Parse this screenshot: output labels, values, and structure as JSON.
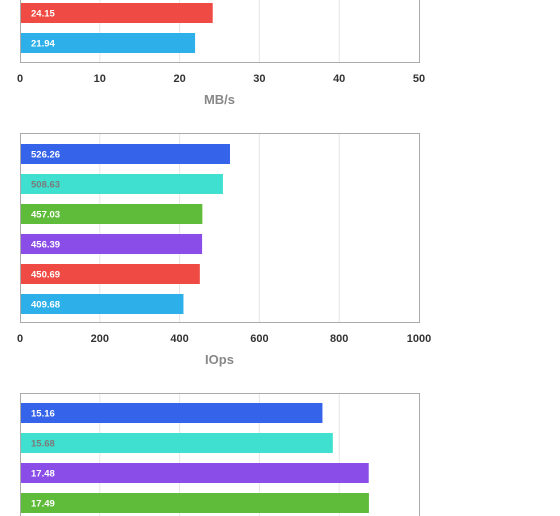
{
  "colors": {
    "blue": "#3563e9",
    "teal": "#40e0d0",
    "green": "#5fbb3a",
    "purple": "#8a4de8",
    "red": "#ef4a43",
    "lightblue": "#2db0ea",
    "frame": "#aaaaaa",
    "grid": "#e6e6e6"
  },
  "chart_data": [
    {
      "type": "bar",
      "orientation": "horizontal",
      "xlabel": "MB/s",
      "xlim": [
        0,
        50
      ],
      "xticks": [
        "0",
        "10",
        "20",
        "30",
        "40",
        "50"
      ],
      "grid": true,
      "bars": [
        {
          "value": 24.15,
          "label": "24.15",
          "color": "red"
        },
        {
          "value": 21.94,
          "label": "21.94",
          "color": "lightblue"
        }
      ]
    },
    {
      "type": "bar",
      "orientation": "horizontal",
      "xlabel": "IOps",
      "xlim": [
        0,
        1000
      ],
      "xticks": [
        "0",
        "200",
        "400",
        "600",
        "800",
        "1000"
      ],
      "grid": true,
      "bars": [
        {
          "value": 526.26,
          "label": "526.26",
          "color": "blue"
        },
        {
          "value": 508.63,
          "label": "508.63",
          "color": "teal"
        },
        {
          "value": 457.03,
          "label": "457.03",
          "color": "green"
        },
        {
          "value": 456.39,
          "label": "456.39",
          "color": "purple"
        },
        {
          "value": 450.69,
          "label": "450.69",
          "color": "red"
        },
        {
          "value": 409.68,
          "label": "409.68",
          "color": "lightblue"
        }
      ]
    },
    {
      "type": "bar",
      "orientation": "horizontal",
      "xlabel": "",
      "xlim": [
        0,
        20
      ],
      "xticks": [],
      "grid": true,
      "bars": [
        {
          "value": 15.16,
          "label": "15.16",
          "color": "blue"
        },
        {
          "value": 15.68,
          "label": "15.68",
          "color": "teal"
        },
        {
          "value": 17.48,
          "label": "17.48",
          "color": "purple"
        },
        {
          "value": 17.49,
          "label": "17.49",
          "color": "green"
        }
      ]
    }
  ]
}
